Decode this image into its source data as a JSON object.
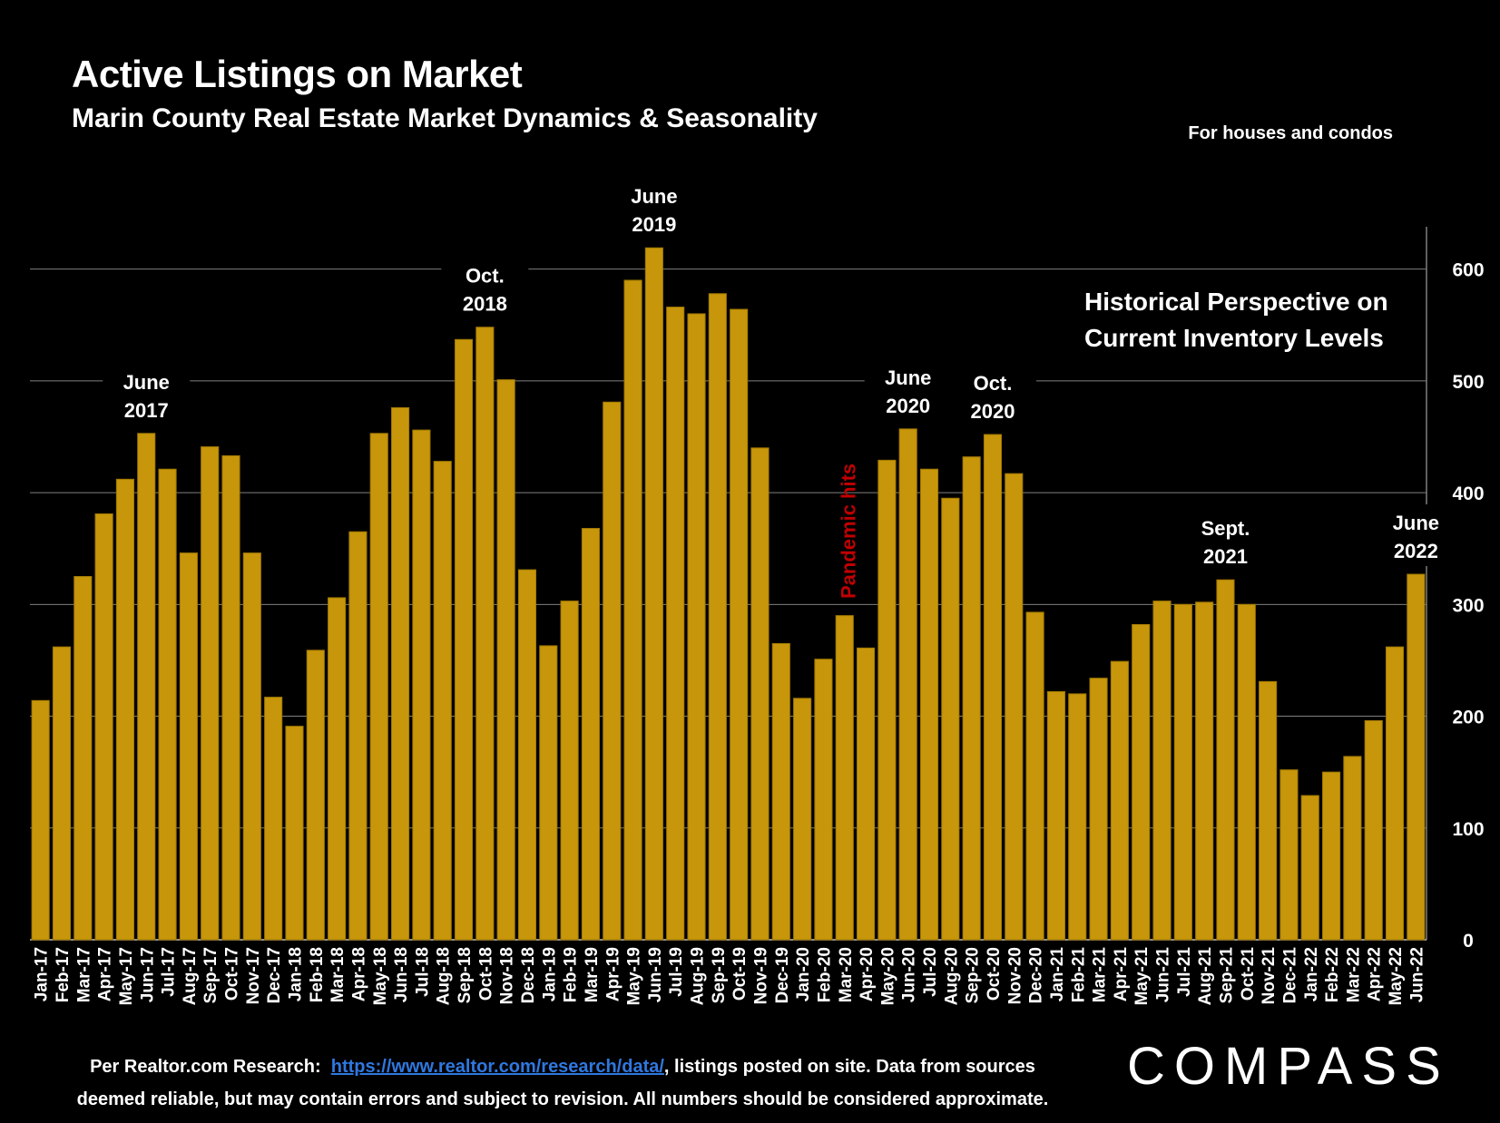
{
  "header": {
    "title": "Active Listings on Market",
    "subtitle": "Marin County Real Estate Market Dynamics & Seasonality",
    "note": "For houses and condos"
  },
  "footer": {
    "prefix": "Per Realtor.com Research:",
    "link_text": "https://www.realtor.com/research/data/",
    "line1_rest": ", listings posted on site. Data from sources",
    "line2": "deemed reliable, but may contain errors and subject to revision. All numbers should be considered approximate."
  },
  "logo": "COMPASS",
  "colors": {
    "bar": "#c7960a",
    "background": "#000000",
    "annotation_red": "#c00000",
    "grid": "#7f7f7f"
  },
  "chart_data": {
    "type": "bar",
    "title": "Active Listings on Market",
    "ylim": [
      0,
      620
    ],
    "yticks": [
      0,
      100,
      200,
      300,
      400,
      500,
      600
    ],
    "y_axis_position": "right",
    "grid": true,
    "categories": [
      "Jan-17",
      "Feb-17",
      "Mar-17",
      "Apr-17",
      "May-17",
      "Jun-17",
      "Jul-17",
      "Aug-17",
      "Sep-17",
      "Oct-17",
      "Nov-17",
      "Dec-17",
      "Jan-18",
      "Feb-18",
      "Mar-18",
      "Apr-18",
      "May-18",
      "Jun-18",
      "Jul-18",
      "Aug-18",
      "Sep-18",
      "Oct-18",
      "Nov-18",
      "Dec-18",
      "Jan-19",
      "Feb-19",
      "Mar-19",
      "Apr-19",
      "May-19",
      "Jun-19",
      "Jul-19",
      "Aug-19",
      "Sep-19",
      "Oct-19",
      "Nov-19",
      "Dec-19",
      "Jan-20",
      "Feb-20",
      "Mar-20",
      "Apr-20",
      "May-20",
      "Jun-20",
      "Jul-20",
      "Aug-20",
      "Sep-20",
      "Oct-20",
      "Nov-20",
      "Dec-20",
      "Jan-21",
      "Feb-21",
      "Mar-21",
      "Apr-21",
      "May-21",
      "Jun-21",
      "Jul-21",
      "Aug-21",
      "Sep-21",
      "Oct-21",
      "Nov-21",
      "Dec-21",
      "Jan-22",
      "Feb-22",
      "Mar-22",
      "Apr-22",
      "May-22",
      "Jun-22"
    ],
    "values": [
      214,
      262,
      325,
      381,
      412,
      453,
      421,
      346,
      441,
      433,
      346,
      217,
      191,
      259,
      306,
      365,
      453,
      476,
      456,
      428,
      537,
      548,
      501,
      331,
      263,
      303,
      368,
      481,
      590,
      619,
      566,
      560,
      578,
      564,
      440,
      265,
      216,
      251,
      290,
      261,
      429,
      457,
      421,
      395,
      432,
      452,
      417,
      293,
      222,
      220,
      234,
      249,
      282,
      303,
      300,
      302,
      322,
      300,
      231,
      152,
      129,
      150,
      164,
      196,
      262,
      327
    ],
    "annotations": [
      {
        "index": 5,
        "lines": [
          "June",
          "2017"
        ]
      },
      {
        "index": 21,
        "lines": [
          "Oct.",
          "2018"
        ]
      },
      {
        "index": 29,
        "lines": [
          "June",
          "2019"
        ]
      },
      {
        "index": 41,
        "lines": [
          "June",
          "2020"
        ]
      },
      {
        "index": 45,
        "lines": [
          "Oct.",
          "2020"
        ]
      },
      {
        "index": 56,
        "lines": [
          "Sept.",
          "2021"
        ]
      },
      {
        "index": 65,
        "lines": [
          "June",
          "2022"
        ]
      }
    ],
    "pandemic_label": {
      "index": 38,
      "text": "Pandemic hits"
    },
    "callout": [
      "Historical Perspective on",
      "Current Inventory Levels"
    ]
  }
}
